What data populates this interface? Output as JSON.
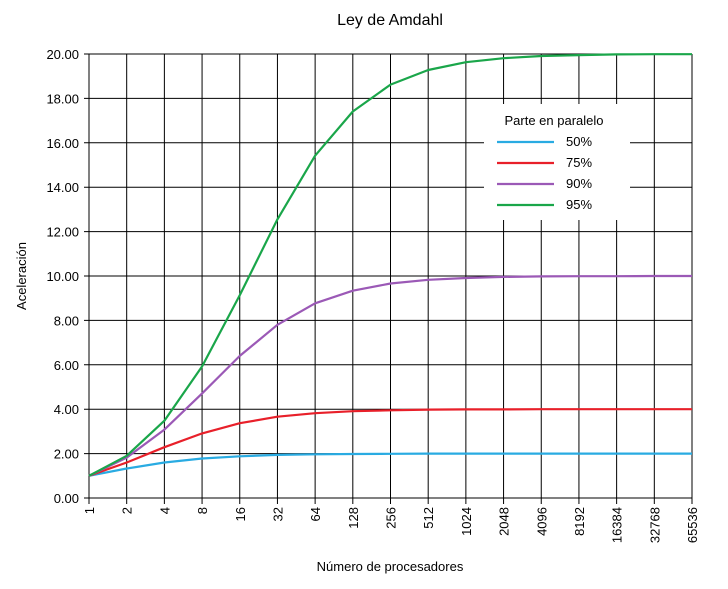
{
  "chart_data": {
    "type": "line",
    "title": "Ley de Amdahl",
    "xlabel": "Número de procesadores",
    "ylabel": "Aceleración",
    "x_scale": "log2",
    "categories": [
      "1",
      "2",
      "4",
      "8",
      "16",
      "32",
      "64",
      "128",
      "256",
      "512",
      "1024",
      "2048",
      "4096",
      "8192",
      "16384",
      "32768",
      "65536"
    ],
    "y_ticks": [
      "0.00",
      "2.00",
      "4.00",
      "6.00",
      "8.00",
      "10.00",
      "12.00",
      "14.00",
      "16.00",
      "18.00",
      "20.00"
    ],
    "ylim": [
      0,
      20
    ],
    "grid": true,
    "legend": {
      "title": "Parte en paralelo",
      "placement": "top-right"
    },
    "series": [
      {
        "name": "50%",
        "color": "#29abe2",
        "values": [
          1.0,
          1.33,
          1.6,
          1.78,
          1.88,
          1.94,
          1.97,
          1.98,
          1.99,
          2.0,
          2.0,
          2.0,
          2.0,
          2.0,
          2.0,
          2.0,
          2.0
        ]
      },
      {
        "name": "75%",
        "color": "#e8202a",
        "values": [
          1.0,
          1.6,
          2.29,
          2.91,
          3.37,
          3.66,
          3.82,
          3.91,
          3.95,
          3.98,
          3.99,
          3.99,
          4.0,
          4.0,
          4.0,
          4.0,
          4.0
        ]
      },
      {
        "name": "90%",
        "color": "#9b59b6",
        "values": [
          1.0,
          1.82,
          3.08,
          4.71,
          6.4,
          7.8,
          8.77,
          9.34,
          9.66,
          9.83,
          9.91,
          9.96,
          9.98,
          9.99,
          9.99,
          10.0,
          10.0
        ]
      },
      {
        "name": "95%",
        "color": "#1aa64a",
        "values": [
          1.0,
          1.9,
          3.48,
          5.93,
          9.14,
          12.55,
          15.42,
          17.41,
          18.62,
          19.28,
          19.63,
          19.81,
          19.91,
          19.95,
          19.98,
          19.99,
          19.99
        ]
      }
    ]
  }
}
